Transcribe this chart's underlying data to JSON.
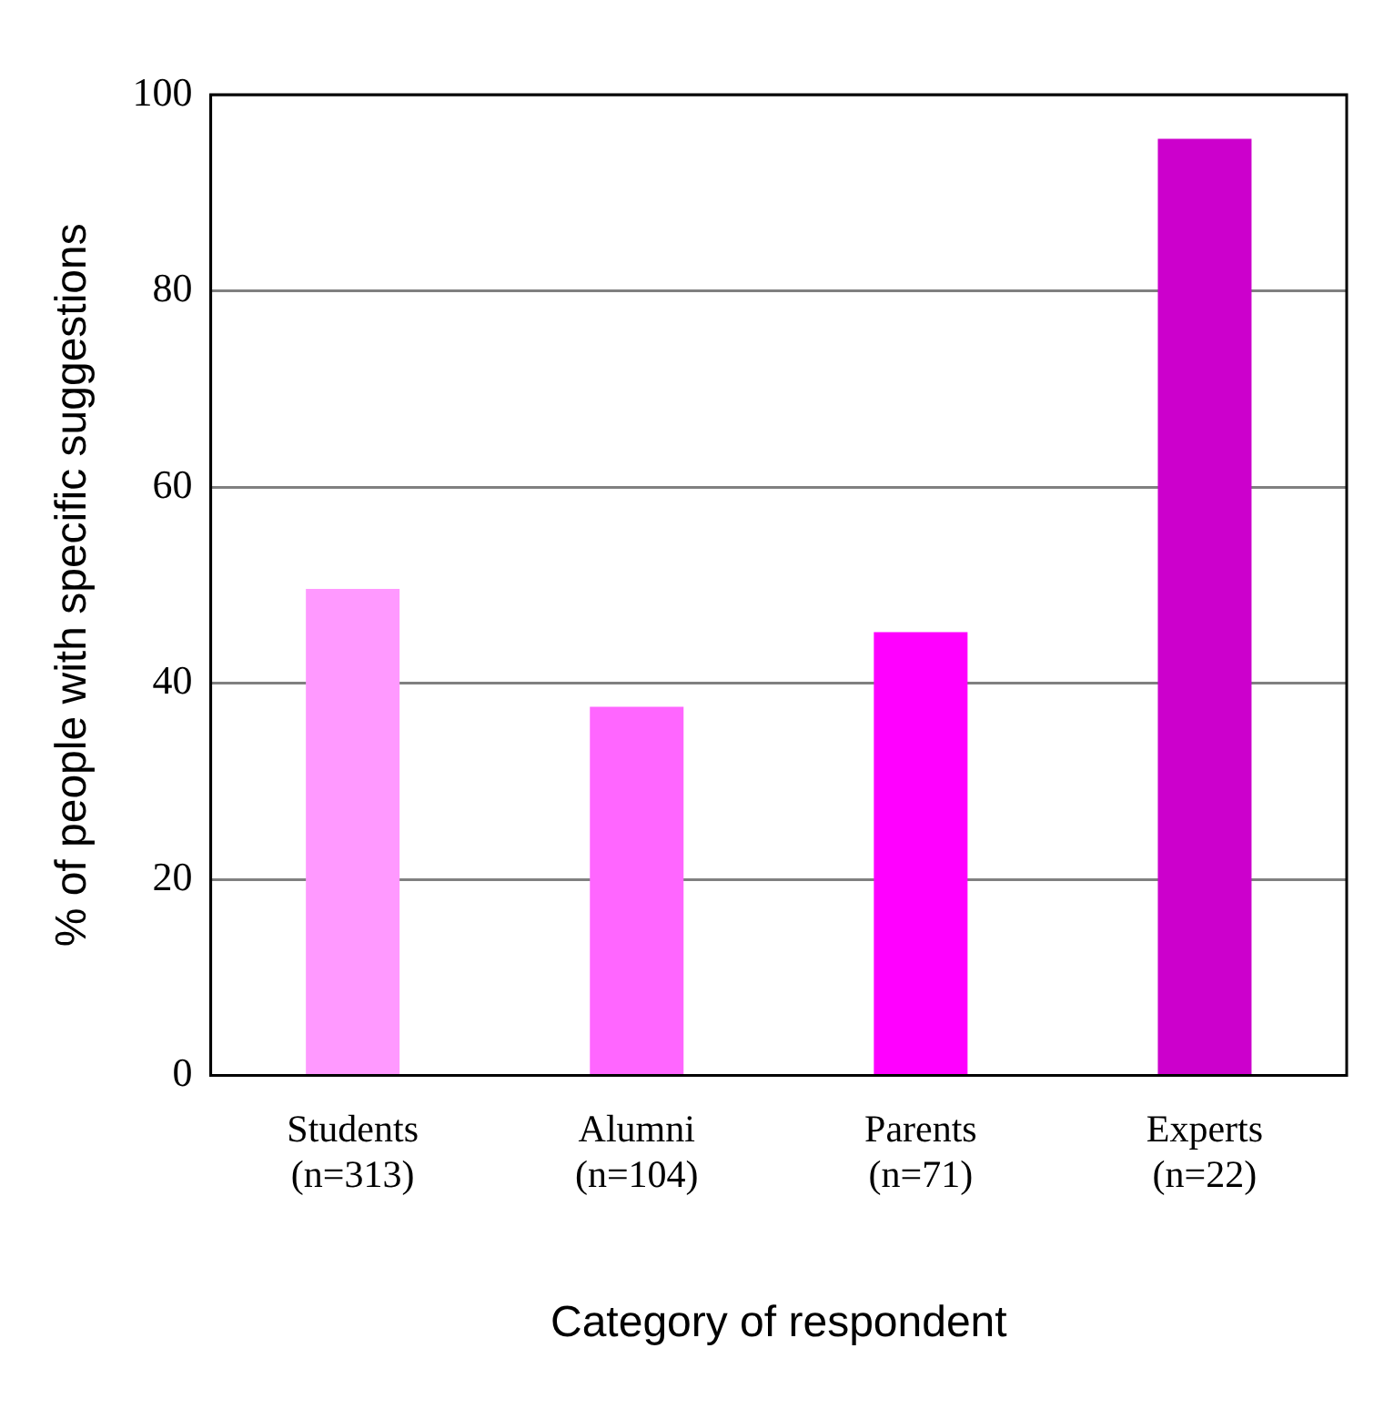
{
  "chart_data": {
    "type": "bar",
    "categories": [
      "Students\n(n=313)",
      "Alumni\n(n=104)",
      "Parents\n(n=71)",
      "Experts\n(n=22)"
    ],
    "values": [
      49.6,
      37.6,
      45.2,
      95.5
    ],
    "colors": [
      "#ff99ff",
      "#ff66ff",
      "#ff00ff",
      "#cc00cc"
    ],
    "xlabel": "Category of respondent",
    "ylabel": "% of people with specific suggestions",
    "ylim": [
      0,
      100
    ],
    "yticks": [
      0,
      20,
      40,
      60,
      80,
      100
    ],
    "grid": "y"
  }
}
